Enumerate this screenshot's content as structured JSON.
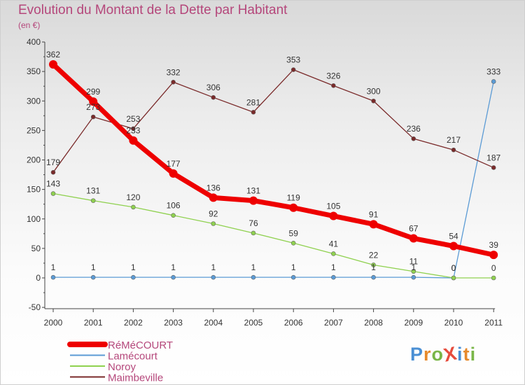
{
  "title": "Evolution du Montant de la Dette par Habitant",
  "subtitle": "(en €)",
  "logo": {
    "text": "ProXiti",
    "letter_colors": [
      "#4a8fd4",
      "#e6892b",
      "#7ab648",
      "#e64b3c",
      "#4a8fd4",
      "#e6892b",
      "#7ab648"
    ]
  },
  "chart_data": {
    "type": "line",
    "title": "Evolution du Montant de la Dette par Habitant",
    "ylabel": "(en €)",
    "xlabel": "",
    "x": [
      "2000",
      "2001",
      "2002",
      "2003",
      "2004",
      "2005",
      "2006",
      "2007",
      "2008",
      "2009",
      "2010",
      "2011"
    ],
    "ylim": [
      -50,
      400
    ],
    "yticks": [
      "-50",
      "0",
      "50",
      "100",
      "150",
      "200",
      "250",
      "300",
      "350",
      "400"
    ],
    "grid": false,
    "legend_position": "bottom-left",
    "series": [
      {
        "name": "RéMéCOURT",
        "color": "#ee0000",
        "values": [
          362,
          299,
          233,
          177,
          136,
          131,
          119,
          105,
          91,
          67,
          54,
          39
        ],
        "labels": [
          "362",
          "299",
          "233",
          "177",
          "136",
          "131",
          "119",
          "105",
          "91",
          "67",
          "54",
          "39"
        ]
      },
      {
        "name": "Lamécourt",
        "color": "#5b9bd5",
        "values": [
          1,
          1,
          1,
          1,
          1,
          1,
          1,
          1,
          1,
          1,
          0,
          333
        ],
        "labels": [
          "1",
          "1",
          "1",
          "1",
          "1",
          "1",
          "1",
          "1",
          "1",
          "1",
          "0",
          "333"
        ]
      },
      {
        "name": "Noroy",
        "color": "#8fd14f",
        "values": [
          143,
          131,
          120,
          106,
          92,
          76,
          59,
          41,
          22,
          11,
          0,
          0
        ],
        "labels": [
          "143",
          "131",
          "120",
          "106",
          "92",
          "76",
          "59",
          "41",
          "22",
          "11",
          "0",
          "0"
        ]
      },
      {
        "name": "Maimbeville",
        "color": "#7a2a2a",
        "values": [
          179,
          273,
          253,
          332,
          306,
          281,
          353,
          326,
          300,
          236,
          217,
          187
        ],
        "labels": [
          "179",
          "273",
          "253",
          "332",
          "306",
          "281",
          "353",
          "326",
          "300",
          "236",
          "217",
          "187"
        ]
      }
    ]
  }
}
